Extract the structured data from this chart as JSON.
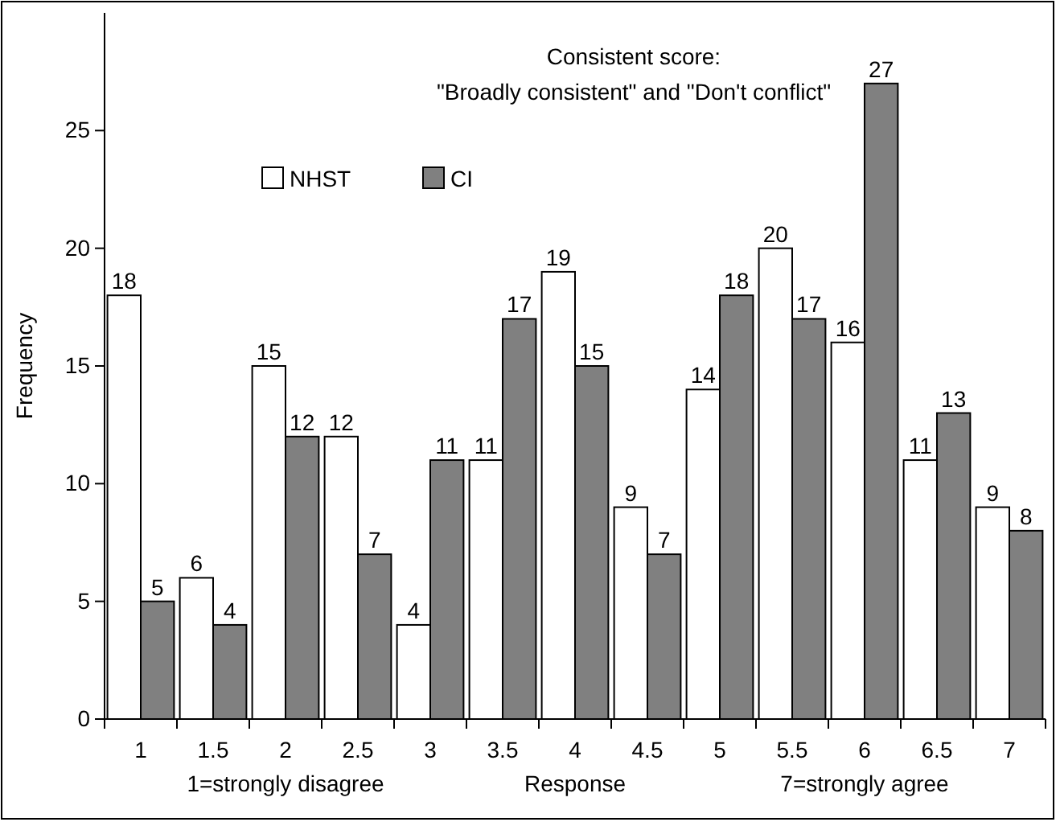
{
  "chart_data": {
    "type": "bar",
    "title": "Consistent score:",
    "subtitle": "\"Broadly consistent\" and \"Don't conflict\"",
    "xlabel": "Response",
    "ylabel": "Frequency",
    "categories": [
      "1",
      "1.5",
      "2",
      "2.5",
      "3",
      "3.5",
      "4",
      "4.5",
      "5",
      "5.5",
      "6",
      "6.5",
      "7"
    ],
    "series": [
      {
        "name": "NHST",
        "color": "#ffffff",
        "values": [
          18,
          6,
          15,
          12,
          4,
          11,
          19,
          9,
          14,
          20,
          16,
          11,
          9
        ]
      },
      {
        "name": "CI",
        "color": "#808080",
        "values": [
          5,
          4,
          12,
          7,
          11,
          17,
          15,
          7,
          18,
          17,
          27,
          13,
          8
        ]
      }
    ],
    "ylim": [
      0,
      30
    ],
    "yticks": [
      0,
      5,
      10,
      15,
      20,
      25
    ],
    "data_labels": true,
    "legend": "top left",
    "grid": false,
    "annotations": [
      "1=strongly disagree",
      "7=strongly agree"
    ]
  }
}
